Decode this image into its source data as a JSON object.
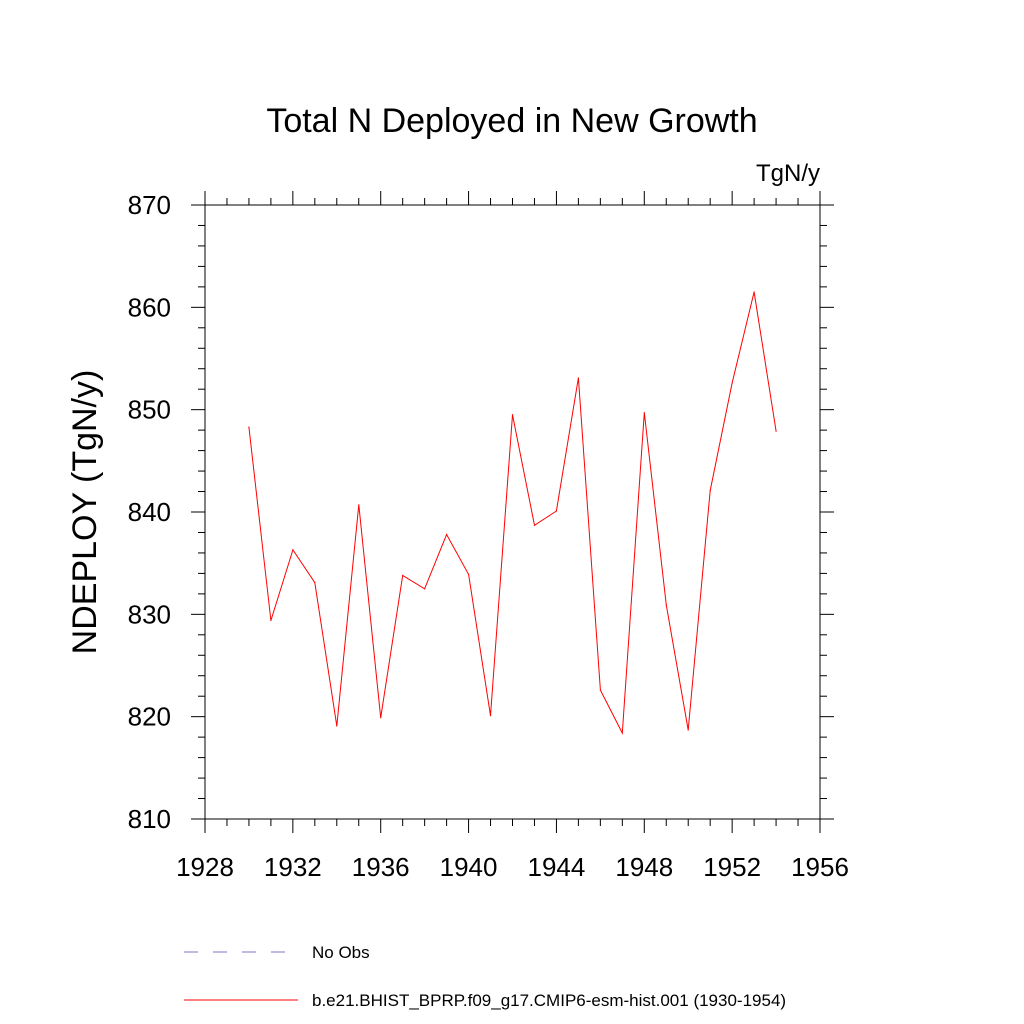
{
  "chart_data": {
    "type": "line",
    "title": "Total N Deployed in New Growth",
    "units_label": "TgN/y",
    "ylabel": "NDEPLOY  (TgN/y)",
    "xlabel": "",
    "xlim": [
      1928,
      1956
    ],
    "ylim": [
      810,
      870
    ],
    "xticks": [
      1928,
      1932,
      1936,
      1940,
      1944,
      1948,
      1952,
      1956
    ],
    "yticks": [
      810,
      820,
      830,
      840,
      850,
      860,
      870
    ],
    "grid": false,
    "legend_position": "bottom",
    "series": [
      {
        "name": "b.e21.BHIST_BPRP.f09_g17.CMIP6-esm-hist.001 (1930-1954)",
        "color": "#ff0000",
        "style": "solid",
        "x": [
          1930,
          1931,
          1932,
          1933,
          1934,
          1935,
          1936,
          1937,
          1938,
          1939,
          1940,
          1941,
          1942,
          1943,
          1944,
          1945,
          1946,
          1947,
          1948,
          1949,
          1950,
          1951,
          1952,
          1953,
          1954
        ],
        "y": [
          848.3,
          829.4,
          836.3,
          833.1,
          819.1,
          840.7,
          819.9,
          833.8,
          832.5,
          837.8,
          833.9,
          820.1,
          849.5,
          838.7,
          840.1,
          853.1,
          822.6,
          818.4,
          849.7,
          830.9,
          818.7,
          842.1,
          852.6,
          861.5,
          847.9
        ]
      }
    ],
    "legend": [
      {
        "label": "No Obs",
        "color": "#7777cc",
        "style": "dashed"
      },
      {
        "label": "b.e21.BHIST_BPRP.f09_g17.CMIP6-esm-hist.001 (1930-1954)",
        "color": "#ff0000",
        "style": "solid"
      }
    ]
  }
}
